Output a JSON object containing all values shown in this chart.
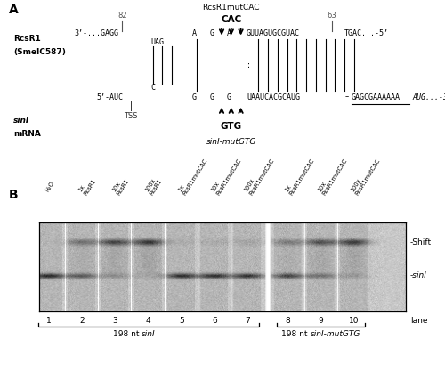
{
  "fig_width": 5.0,
  "fig_height": 4.36,
  "dpi": 100,
  "background": "#ffffff",
  "shift_label": "-Shift",
  "sinI_band_label": "-sinI",
  "lane_label_text": "lane",
  "lane_labels": [
    "1",
    "2",
    "3",
    "4",
    "5",
    "6",
    "7",
    "8",
    "9",
    "10"
  ],
  "bracket1_text_plain": "198 nt ",
  "bracket1_text_italic": "sinI",
  "bracket2_text_plain": "198 nt ",
  "bracket2_text_italic": "sinI-mutGTG",
  "col_labels": [
    "H₂O",
    "1x\nRcsR1",
    "10x\nRcsR1",
    "100x\nRcsR1",
    "1x\nRcsR1mutCAC",
    "10x\nRcsR1mutCAC",
    "100x\nRcsR1mutCAC",
    "1x\nRcsR1mutCAC",
    "10x\nRcsR1mutCAC",
    "100x\nRcsR1mutCAC"
  ]
}
